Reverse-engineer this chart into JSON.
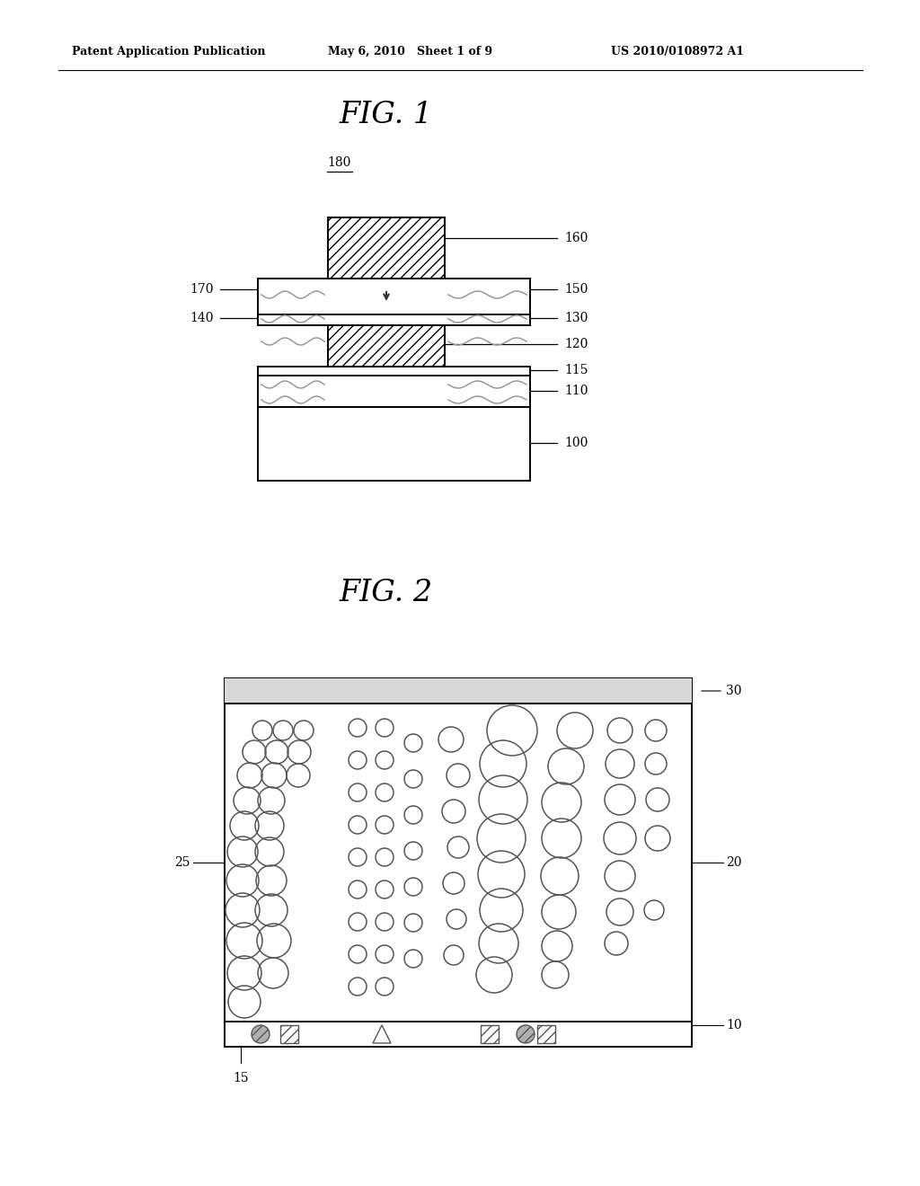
{
  "bg_color": "#ffffff",
  "header_text1": "Patent Application Publication",
  "header_text2": "May 6, 2010   Sheet 1 of 9",
  "header_text3": "US 2010/0108972 A1",
  "fig1_title": "FIG. 1",
  "fig2_title": "FIG. 2",
  "label_180": "180",
  "label_160": "160",
  "label_170": "170",
  "label_150": "150",
  "label_140": "140",
  "label_130": "130",
  "label_120": "120",
  "label_115": "115",
  "label_110": "110",
  "label_100": "100",
  "label_30": "30",
  "label_25": "25",
  "label_20": "20",
  "label_15": "15",
  "label_10": "10",
  "line_color": "#000000",
  "gray_light": "#e0e0e0",
  "gray_mid": "#aaaaaa"
}
